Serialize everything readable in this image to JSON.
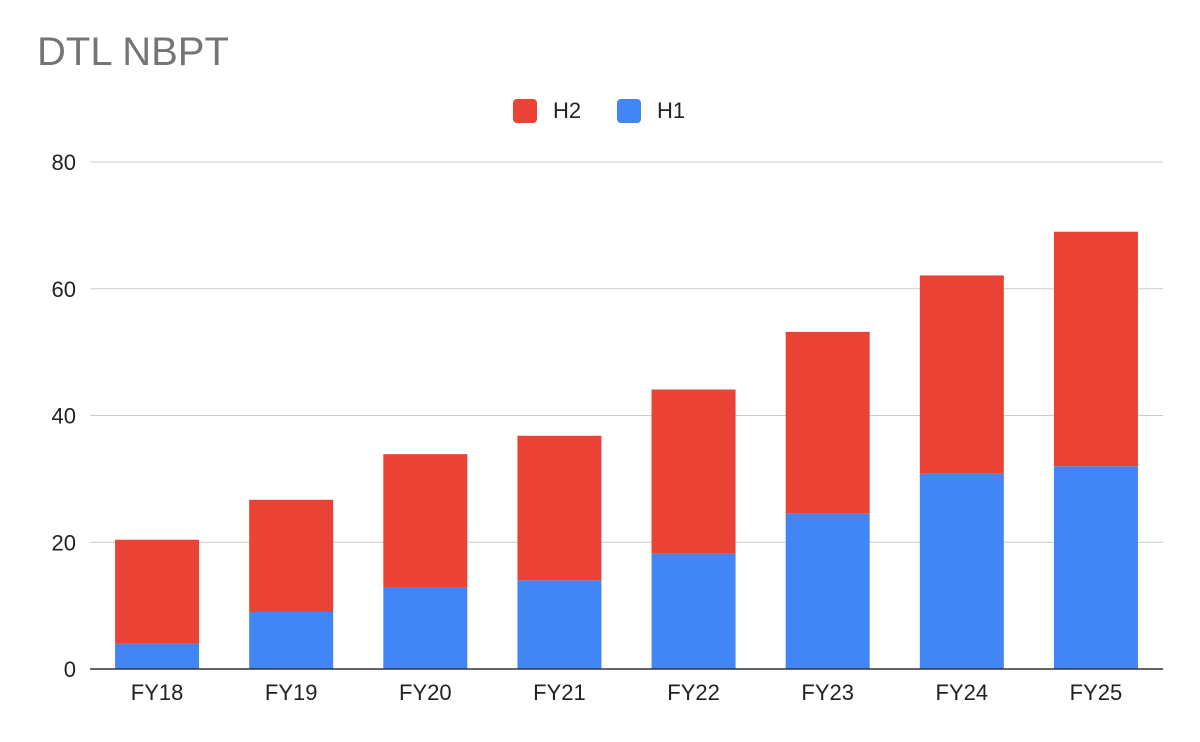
{
  "chart_data": {
    "type": "bar",
    "stacked": true,
    "title": "DTL NBPT",
    "categories": [
      "FY18",
      "FY19",
      "FY20",
      "FY21",
      "FY22",
      "FY23",
      "FY24",
      "FY25"
    ],
    "series": [
      {
        "name": "H1",
        "color": "#4285f4",
        "values": [
          4,
          9,
          12.8,
          14,
          18.2,
          24.5,
          30.8,
          32
        ]
      },
      {
        "name": "H2",
        "color": "#ea4335",
        "values": [
          16.4,
          17.7,
          21.1,
          22.8,
          25.9,
          28.7,
          31.3,
          37
        ]
      }
    ],
    "legend_order": [
      "H2",
      "H1"
    ],
    "legend_position": "top-center",
    "ylim": [
      0,
      80
    ],
    "yticks": [
      0,
      20,
      40,
      60,
      80
    ],
    "xlabel": "",
    "ylabel": "",
    "grid": true
  }
}
